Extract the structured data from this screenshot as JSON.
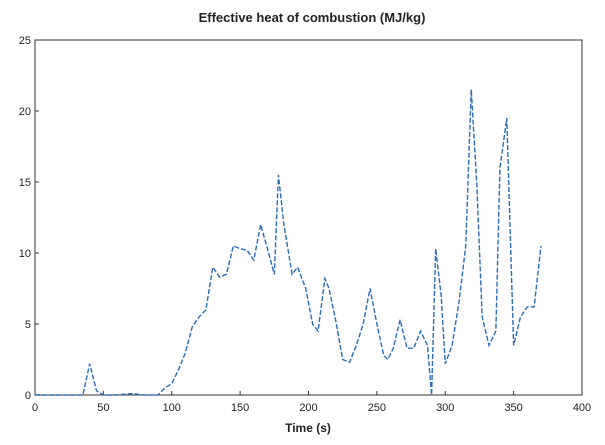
{
  "chart_data": {
    "type": "line",
    "title": "Effective heat of combustion (MJ/kg)",
    "x_label": "Time (s)",
    "x": [
      0,
      10,
      20,
      30,
      35,
      40,
      45,
      50,
      60,
      70,
      80,
      90,
      95,
      100,
      105,
      110,
      115,
      120,
      125,
      130,
      135,
      140,
      145,
      150,
      155,
      160,
      165,
      170,
      175,
      178,
      182,
      188,
      192,
      198,
      203,
      207,
      212,
      215,
      220,
      225,
      230,
      235,
      240,
      245,
      250,
      255,
      258,
      262,
      267,
      272,
      277,
      282,
      287,
      290,
      293,
      297,
      300,
      305,
      310,
      315,
      319,
      323,
      327,
      332,
      337,
      340,
      345,
      350,
      355,
      360,
      365,
      370
    ],
    "series": [
      {
        "name": "Effective heat of combustion",
        "color": "#2a6bb5",
        "values": [
          0,
          0,
          0,
          0,
          0,
          2.2,
          0.3,
          0,
          0,
          0.1,
          0,
          0,
          0.5,
          0.8,
          1.8,
          3,
          4.8,
          5.5,
          6,
          9,
          8.3,
          8.5,
          10.5,
          10.3,
          10.2,
          9.5,
          12,
          10.3,
          8.5,
          15.5,
          12,
          8.5,
          9,
          7.5,
          5,
          4.5,
          8.2,
          7.5,
          5.2,
          2.5,
          2.3,
          3.5,
          5,
          7.5,
          5,
          2.8,
          2.5,
          3.3,
          5.3,
          3.3,
          3.3,
          4.5,
          3.5,
          0,
          10.3,
          7,
          2.2,
          3.5,
          6.5,
          10.5,
          21.5,
          15,
          5.5,
          3.5,
          4.5,
          16,
          19.5,
          3.5,
          5.5,
          6.2,
          6.2,
          10.5
        ]
      }
    ],
    "xlim": [
      0,
      400
    ],
    "xticks": [
      0,
      50,
      100,
      150,
      200,
      250,
      300,
      350,
      400
    ],
    "ylim": [
      0,
      25
    ],
    "yticks": [
      0,
      5,
      10,
      15,
      20,
      25
    ]
  }
}
